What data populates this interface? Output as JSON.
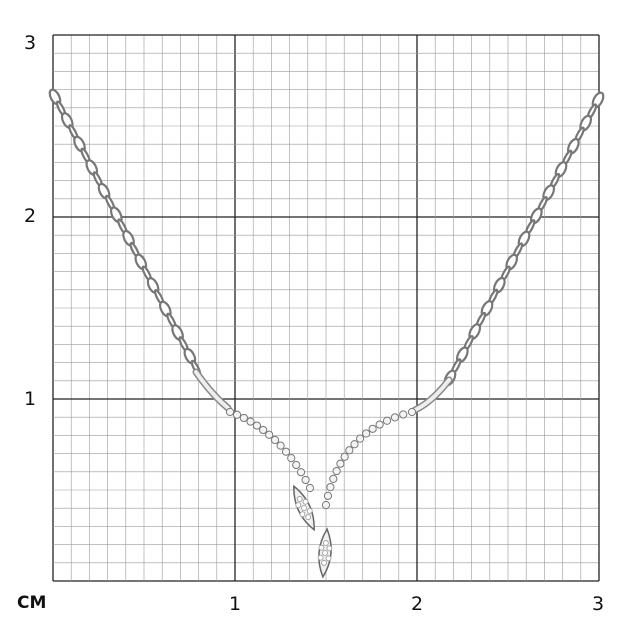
{
  "ruler": {
    "unit_label": "CM",
    "y_labels": [
      "3",
      "2",
      "1"
    ],
    "x_labels": [
      "1",
      "2",
      "3"
    ],
    "range_cm": [
      0,
      3
    ],
    "minor_step_cm": 0.1
  },
  "colors": {
    "grid_major": "#222222",
    "grid_minor": "#9a9a9a",
    "metal": "#c8c8c8"
  },
  "product": {
    "image": "silver-necklace-with-diamonds"
  }
}
